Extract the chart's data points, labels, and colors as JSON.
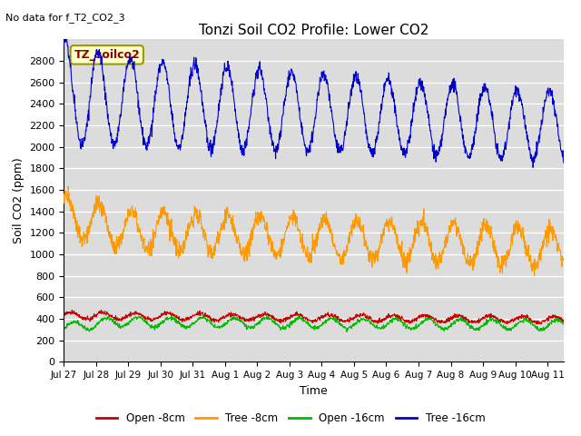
{
  "title": "Tonzi Soil CO2 Profile: Lower CO2",
  "subtitle": "No data for f_T2_CO2_3",
  "ylabel": "Soil CO2 (ppm)",
  "xlabel": "Time",
  "ylim": [
    0,
    3000
  ],
  "yticks": [
    0,
    200,
    400,
    600,
    800,
    1000,
    1200,
    1400,
    1600,
    1800,
    2000,
    2200,
    2400,
    2600,
    2800
  ],
  "bg_color": "#dcdcdc",
  "legend_box_color": "#ffffcc",
  "legend_box_text": "TZ_soilco2",
  "legend_box_edge": "#999900",
  "series": {
    "open_8cm": {
      "color": "#cc0000",
      "label": "Open -8cm"
    },
    "tree_8cm": {
      "color": "#ff9900",
      "label": "Tree -8cm"
    },
    "open_16cm": {
      "color": "#00bb00",
      "label": "Open -16cm"
    },
    "tree_16cm": {
      "color": "#0000cc",
      "label": "Tree -16cm"
    }
  },
  "x_tick_labels": [
    "Jul 27",
    "Jul 28",
    "Jul 29",
    "Jul 30",
    "Jul 31",
    "Aug 1",
    "Aug 2",
    "Aug 3",
    "Aug 4",
    "Aug 5",
    "Aug 6",
    "Aug 7",
    "Aug 8",
    "Aug 9",
    "Aug 10",
    "Aug 11"
  ],
  "n_days": 15.5,
  "seed": 42
}
